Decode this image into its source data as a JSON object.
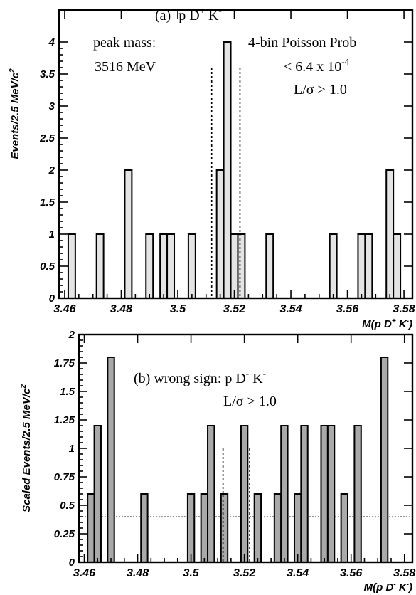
{
  "chart_data": [
    {
      "type": "bar",
      "panel": "a",
      "title_prefix": "(a)",
      "title_main": "p D",
      "title_sup1": "+",
      "title_tail": " K",
      "title_sup2": "-",
      "ylabel": "Events/2.5 MeV/c",
      "ylabel_sup": "2",
      "xlabel": "M(p D",
      "xlabel_sup": "+",
      "xlabel_tail": " K",
      "xlabel_sup2": "-",
      "xlabel_close": ")",
      "xlim": [
        3.458,
        3.583
      ],
      "ylim": [
        0,
        4.5
      ],
      "xticks": [
        3.46,
        3.48,
        3.5,
        3.52,
        3.54,
        3.56,
        3.58
      ],
      "xtick_labels": [
        "3.46",
        "3.48",
        "3.5",
        "3.52",
        "3.54",
        "3.56",
        "3.58"
      ],
      "yticks": [
        0,
        0.5,
        1,
        1.5,
        2,
        2.5,
        3,
        3.5,
        4
      ],
      "ytick_labels": [
        "0",
        "0.5",
        "1",
        "1.5",
        "2",
        "2.5",
        "3",
        "3.5",
        "4"
      ],
      "bin_width": 0.0025,
      "bins": [
        {
          "x": 3.4625,
          "y": 1
        },
        {
          "x": 3.4725,
          "y": 1
        },
        {
          "x": 3.4825,
          "y": 2
        },
        {
          "x": 3.49,
          "y": 1
        },
        {
          "x": 3.495,
          "y": 1
        },
        {
          "x": 3.4975,
          "y": 1
        },
        {
          "x": 3.505,
          "y": 1
        },
        {
          "x": 3.515,
          "y": 2
        },
        {
          "x": 3.5175,
          "y": 4
        },
        {
          "x": 3.52,
          "y": 1
        },
        {
          "x": 3.5225,
          "y": 1
        },
        {
          "x": 3.5325,
          "y": 1
        },
        {
          "x": 3.555,
          "y": 1
        },
        {
          "x": 3.565,
          "y": 1
        },
        {
          "x": 3.5675,
          "y": 1
        },
        {
          "x": 3.575,
          "y": 2
        },
        {
          "x": 3.5775,
          "y": 1
        }
      ],
      "signal_window": [
        3.512,
        3.522
      ],
      "annotations": {
        "peak_label": "peak mass:",
        "peak_value": "3516 MeV",
        "prob_label": "4-bin Poisson Prob",
        "prob_value": "< 6.4 x 10",
        "prob_exp": "-4",
        "cut": "L/σ > 1.0"
      }
    },
    {
      "type": "bar",
      "panel": "b",
      "title_prefix": "(b)  wrong sign:  p D",
      "title_sup1": "-",
      "title_tail": " K",
      "title_sup2": "-",
      "ylabel": "Scaled Events/2.5 MeV/c",
      "ylabel_sup": "2",
      "xlabel": "M(p D",
      "xlabel_sup": "-",
      "xlabel_tail": " K",
      "xlabel_sup2": "-",
      "xlabel_close": ")",
      "xlim": [
        3.458,
        3.583
      ],
      "ylim": [
        0,
        2
      ],
      "xticks": [
        3.46,
        3.48,
        3.5,
        3.52,
        3.54,
        3.56,
        3.58
      ],
      "xtick_labels": [
        "3.46",
        "3.48",
        "3.5",
        "3.52",
        "3.54",
        "3.56",
        "3.58"
      ],
      "yticks": [
        0,
        0.25,
        0.5,
        0.75,
        1,
        1.25,
        1.5,
        1.75,
        2
      ],
      "ytick_labels": [
        "0",
        "0.25",
        "0.5",
        "0.75",
        "1",
        "1.25",
        "1.5",
        "1.75",
        "2"
      ],
      "bin_width": 0.0025,
      "bins": [
        {
          "x": 3.4625,
          "y": 0.6
        },
        {
          "x": 3.465,
          "y": 1.2
        },
        {
          "x": 3.47,
          "y": 1.8
        },
        {
          "x": 3.4825,
          "y": 0.6
        },
        {
          "x": 3.5,
          "y": 0.6
        },
        {
          "x": 3.505,
          "y": 0.6
        },
        {
          "x": 3.5075,
          "y": 1.2
        },
        {
          "x": 3.5125,
          "y": 0.6
        },
        {
          "x": 3.52,
          "y": 1.2
        },
        {
          "x": 3.525,
          "y": 0.6
        },
        {
          "x": 3.5325,
          "y": 0.6
        },
        {
          "x": 3.535,
          "y": 1.2
        },
        {
          "x": 3.54,
          "y": 0.6
        },
        {
          "x": 3.5425,
          "y": 1.2
        },
        {
          "x": 3.55,
          "y": 1.2
        },
        {
          "x": 3.5525,
          "y": 1.2
        },
        {
          "x": 3.5575,
          "y": 0.6
        },
        {
          "x": 3.5625,
          "y": 1.2
        },
        {
          "x": 3.5725,
          "y": 1.8
        }
      ],
      "signal_window": [
        3.512,
        3.522
      ],
      "average_level": 0.4,
      "annotations": {
        "cut": "L/σ > 1.0"
      }
    }
  ]
}
